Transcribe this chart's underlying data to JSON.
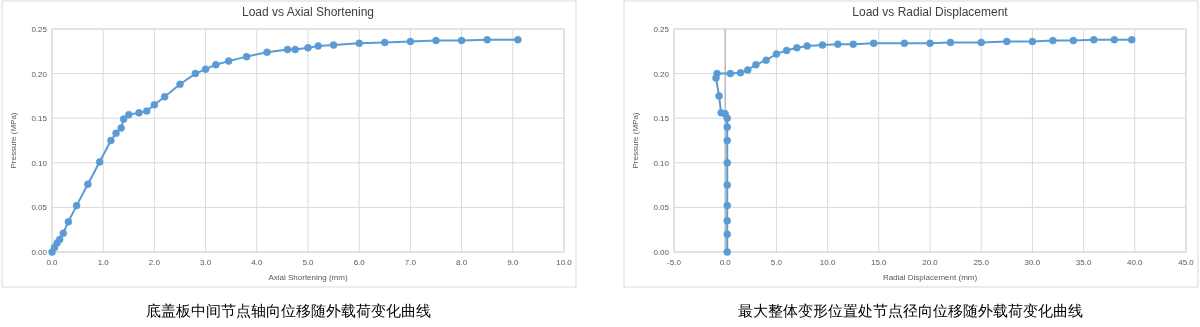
{
  "chart_data": [
    {
      "type": "line",
      "title": "Load vs Axial Shortening",
      "xlabel": "Axial Shortening (mm)",
      "ylabel": "Pressure (MPa)",
      "annotations": [
        "底盖板中间节点轴向位移随外载荷变化曲线"
      ],
      "marker": "circle",
      "grid": true,
      "xlim": [
        0,
        10
      ],
      "xticks": [
        {
          "value": 0,
          "label": "0.0"
        },
        {
          "value": 1,
          "label": "1.0"
        },
        {
          "value": 2,
          "label": "2.0"
        },
        {
          "value": 3,
          "label": "3.0"
        },
        {
          "value": 4,
          "label": "4.0"
        },
        {
          "value": 5,
          "label": "5.0"
        },
        {
          "value": 6,
          "label": "6.0"
        },
        {
          "value": 7,
          "label": "7.0"
        },
        {
          "value": 8,
          "label": "8.0"
        },
        {
          "value": 9,
          "label": "9.0"
        },
        {
          "value": 10,
          "label": "10.0"
        }
      ],
      "ylim": [
        0,
        0.25
      ],
      "yticks": [
        {
          "value": 0,
          "label": "0.00"
        },
        {
          "value": 0.05,
          "label": "0.05"
        },
        {
          "value": 0.1,
          "label": "0.10"
        },
        {
          "value": 0.15,
          "label": "0.15"
        },
        {
          "value": 0.2,
          "label": "0.20"
        },
        {
          "value": 0.25,
          "label": "0.25"
        }
      ],
      "series": [
        {
          "color": "#5b9bd5",
          "x": [
            0,
            0.05,
            0.1,
            0.15,
            0.22,
            0.32,
            0.48,
            0.7,
            0.93,
            1.15,
            1.25,
            1.35,
            1.4,
            1.5,
            1.7,
            1.85,
            2.0,
            2.2,
            2.5,
            2.8,
            3.0,
            3.2,
            3.45,
            3.8,
            4.2,
            4.6,
            4.75,
            5.0,
            5.2,
            5.5,
            6.0,
            6.5,
            7.0,
            7.5,
            8.0,
            8.5,
            9.1
          ],
          "values": [
            0,
            0.005,
            0.01,
            0.014,
            0.021,
            0.034,
            0.052,
            0.076,
            0.101,
            0.125,
            0.133,
            0.139,
            0.149,
            0.154,
            0.156,
            0.158,
            0.165,
            0.174,
            0.188,
            0.2,
            0.205,
            0.21,
            0.214,
            0.219,
            0.224,
            0.227,
            0.227,
            0.229,
            0.231,
            0.232,
            0.234,
            0.235,
            0.236,
            0.237,
            0.237,
            0.238,
            0.238
          ]
        }
      ]
    },
    {
      "type": "line",
      "title": "Load vs Radial Displacement",
      "xlabel": "Radial Displacement (mm)",
      "ylabel": "Pressure (MPa)",
      "annotations": [
        "最大整体变形位置处节点径向位移随外载荷变化曲线"
      ],
      "marker": "circle",
      "grid": true,
      "xlim": [
        -5,
        45
      ],
      "xticks": [
        {
          "value": -5,
          "label": "-5.0"
        },
        {
          "value": 0,
          "label": "0.0"
        },
        {
          "value": 5,
          "label": "5.0"
        },
        {
          "value": 10,
          "label": "10.0"
        },
        {
          "value": 15,
          "label": "15.0"
        },
        {
          "value": 20,
          "label": "20.0"
        },
        {
          "value": 25,
          "label": "25.0"
        },
        {
          "value": 30,
          "label": "30.0"
        },
        {
          "value": 35,
          "label": "35.0"
        },
        {
          "value": 40,
          "label": "40.0"
        },
        {
          "value": 45,
          "label": "45.0"
        }
      ],
      "ylim": [
        0,
        0.25
      ],
      "yticks": [
        {
          "value": 0,
          "label": "0.00"
        },
        {
          "value": 0.05,
          "label": "0.05"
        },
        {
          "value": 0.1,
          "label": "0.10"
        },
        {
          "value": 0.15,
          "label": "0.15"
        },
        {
          "value": 0.2,
          "label": "0.20"
        },
        {
          "value": 0.25,
          "label": "0.25"
        }
      ],
      "series": [
        {
          "color": "#5b9bd5",
          "x": [
            0.2,
            0.2,
            0.2,
            0.2,
            0.2,
            0.2,
            0.2,
            0.2,
            0.2,
            0.0,
            -0.4,
            -0.6,
            -0.9,
            -0.8,
            0.5,
            1.5,
            2.2,
            3.0,
            4.0,
            5.0,
            6.0,
            7.0,
            8.0,
            9.5,
            11,
            12.5,
            14.5,
            17.5,
            20,
            22,
            25,
            27.5,
            30,
            32,
            34,
            36,
            38,
            39.7
          ],
          "values": [
            0,
            0.02,
            0.035,
            0.052,
            0.075,
            0.1,
            0.125,
            0.14,
            0.15,
            0.155,
            0.156,
            0.175,
            0.195,
            0.2,
            0.2,
            0.201,
            0.204,
            0.21,
            0.215,
            0.222,
            0.226,
            0.229,
            0.231,
            0.232,
            0.233,
            0.233,
            0.234,
            0.234,
            0.234,
            0.235,
            0.235,
            0.236,
            0.236,
            0.237,
            0.237,
            0.238,
            0.238,
            0.238
          ]
        }
      ]
    }
  ]
}
